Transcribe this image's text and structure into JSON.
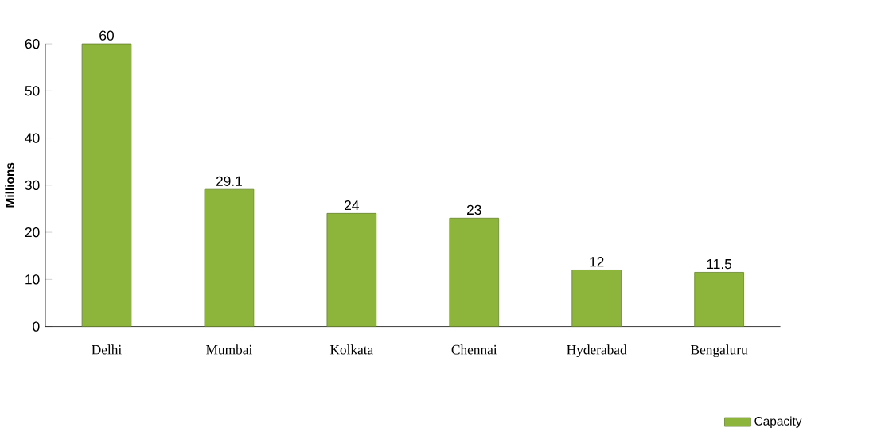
{
  "chart_data": {
    "type": "bar",
    "ylabel": "Millions",
    "categories": [
      "Delhi",
      "Mumbai",
      "Kolkata",
      "Chennai",
      "Hyderabad",
      "Bengaluru"
    ],
    "series": [
      {
        "name": "Capacity",
        "color": "#8db53c",
        "values": [
          60,
          29.1,
          24,
          23,
          12,
          11.5
        ]
      }
    ],
    "ylim": [
      0,
      60
    ],
    "yticks": [
      0,
      10,
      20,
      30,
      40,
      50,
      60
    ],
    "data_labels": true,
    "grid": false,
    "legend": "bottom right"
  }
}
